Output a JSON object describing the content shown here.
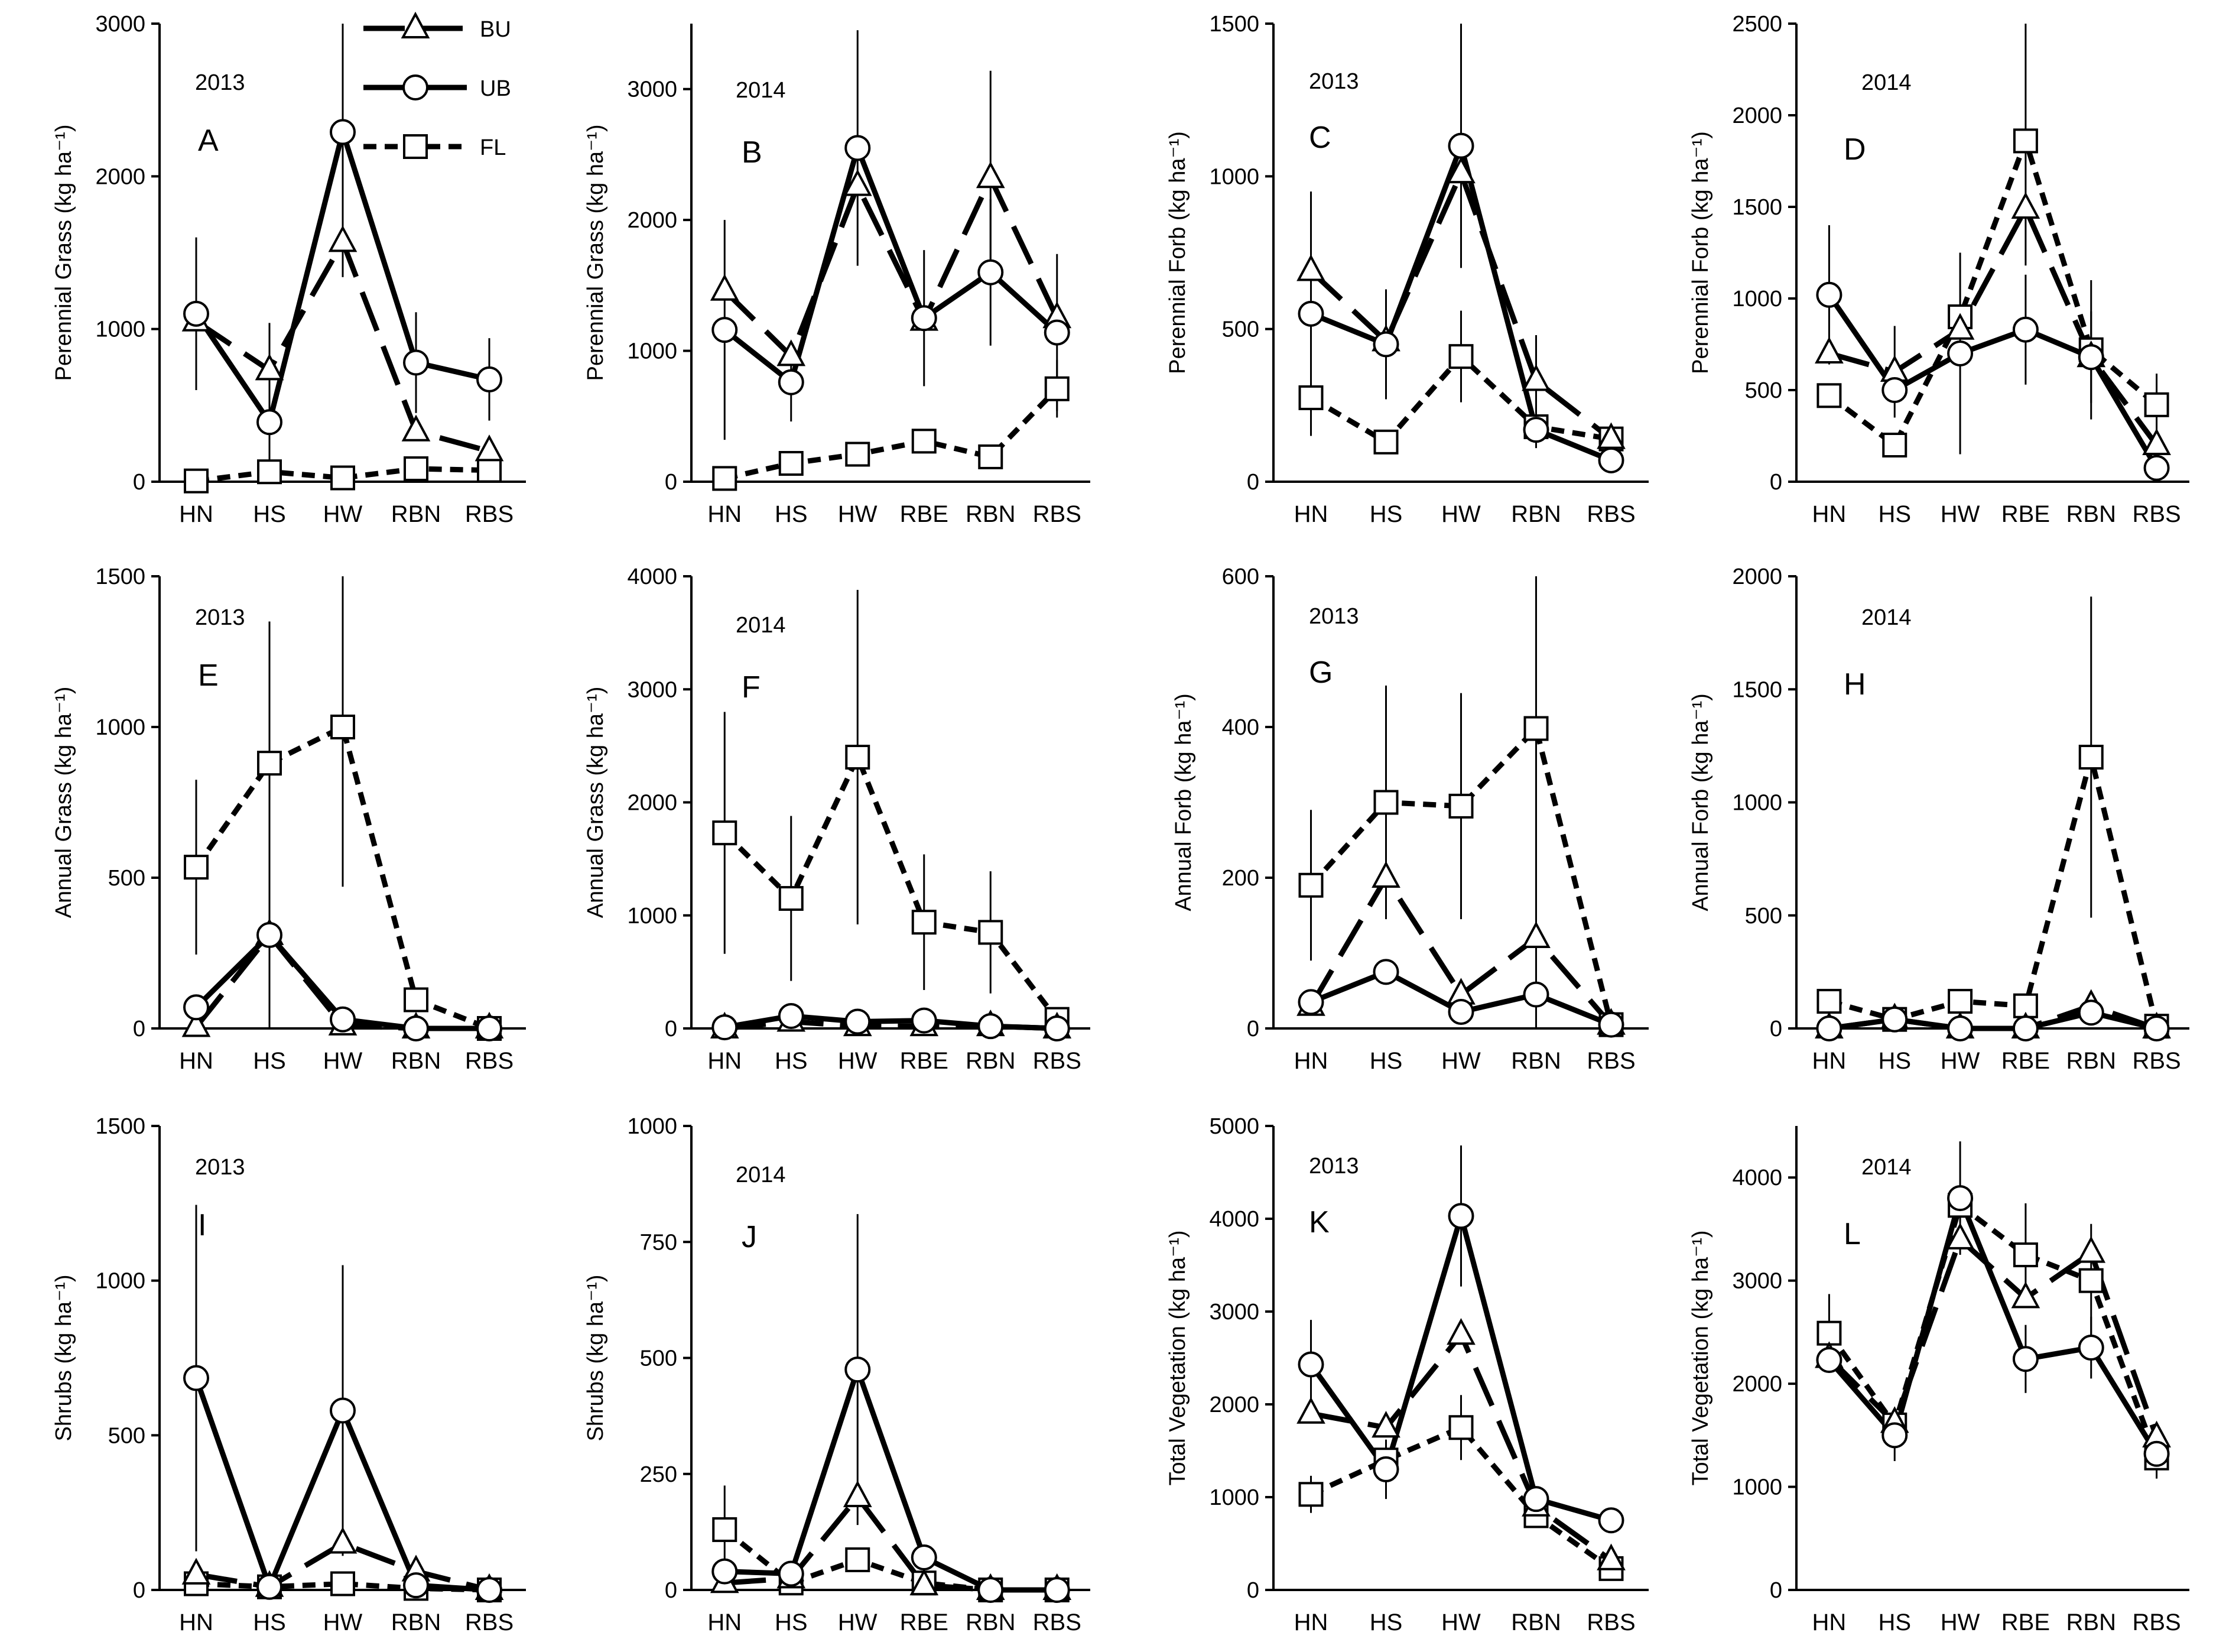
{
  "legend": [
    {
      "series": "BU",
      "label": "BU",
      "marker": "triangle",
      "line": "long-dash"
    },
    {
      "series": "UB",
      "label": "UB",
      "marker": "circle",
      "line": "solid"
    },
    {
      "series": "FL",
      "label": "FL",
      "marker": "square",
      "line": "short-dash"
    }
  ],
  "chart_data": [
    {
      "type": "line",
      "panel": "A",
      "year": "2013",
      "ylabel": "Perennial Grass (kg ha⁻¹)",
      "ylim": [
        0,
        3000
      ],
      "yticks": [
        0,
        1000,
        2000,
        3000
      ],
      "categories": [
        "HN",
        "HS",
        "HW",
        "RBN",
        "RBS"
      ],
      "series": [
        {
          "name": "BU",
          "values": [
            1050,
            730,
            1570,
            330,
            200
          ],
          "err": [
            null,
            null,
            null,
            null,
            null
          ]
        },
        {
          "name": "UB",
          "values": [
            1100,
            390,
            2290,
            780,
            670
          ],
          "err": [
            500,
            650,
            950,
            330,
            270
          ]
        },
        {
          "name": "FL",
          "values": [
            5,
            65,
            25,
            85,
            75
          ],
          "err": [
            null,
            null,
            null,
            null,
            null
          ]
        }
      ]
    },
    {
      "type": "line",
      "panel": "B",
      "year": "2014",
      "ylabel": "Perennial Grass (kg ha⁻¹)",
      "ylim": [
        0,
        3500
      ],
      "yticks": [
        0,
        1000,
        2000,
        3000
      ],
      "categories": [
        "HN",
        "HS",
        "HW",
        "RBE",
        "RBN",
        "RBS"
      ],
      "series": [
        {
          "name": "BU",
          "values": [
            1460,
            960,
            2260,
            1230,
            2320,
            1250
          ],
          "err": [
            null,
            null,
            null,
            null,
            820,
            null
          ]
        },
        {
          "name": "UB",
          "values": [
            1160,
            760,
            2550,
            1250,
            1600,
            1140
          ],
          "err": [
            840,
            300,
            900,
            520,
            560,
            600
          ]
        },
        {
          "name": "FL",
          "values": [
            25,
            140,
            210,
            310,
            190,
            710
          ],
          "err": [
            null,
            null,
            null,
            null,
            null,
            220
          ]
        }
      ]
    },
    {
      "type": "line",
      "panel": "C",
      "year": "2013",
      "ylabel": "Perennial Forb (kg ha⁻¹)",
      "ylim": [
        0,
        1500
      ],
      "yticks": [
        0,
        500,
        1000,
        1500
      ],
      "categories": [
        "HN",
        "HS",
        "HW",
        "RBN",
        "RBS"
      ],
      "series": [
        {
          "name": "BU",
          "values": [
            690,
            460,
            1010,
            330,
            140
          ],
          "err": [
            260,
            null,
            null,
            150,
            null
          ]
        },
        {
          "name": "UB",
          "values": [
            550,
            450,
            1100,
            170,
            70
          ],
          "err": [
            400,
            180,
            400,
            60,
            null
          ]
        },
        {
          "name": "FL",
          "values": [
            275,
            130,
            410,
            180,
            140
          ],
          "err": [
            null,
            null,
            150,
            null,
            null
          ]
        }
      ]
    },
    {
      "type": "line",
      "panel": "D",
      "year": "2014",
      "ylabel": "Perennial Forb (kg ha⁻¹)",
      "ylim": [
        0,
        2500
      ],
      "yticks": [
        0,
        500,
        1000,
        1500,
        2000,
        2500
      ],
      "categories": [
        "HN",
        "HS",
        "HW",
        "RBE",
        "RBN",
        "RBS"
      ],
      "series": [
        {
          "name": "BU",
          "values": [
            700,
            600,
            830,
            1490,
            680,
            200
          ],
          "err": [
            null,
            250,
            null,
            null,
            null,
            null
          ]
        },
        {
          "name": "UB",
          "values": [
            1020,
            500,
            700,
            830,
            680,
            75
          ],
          "err": [
            380,
            null,
            550,
            300,
            250,
            null
          ]
        },
        {
          "name": "FL",
          "values": [
            470,
            200,
            900,
            1860,
            720,
            420
          ],
          "err": [
            null,
            null,
            null,
            680,
            380,
            170
          ]
        }
      ]
    },
    {
      "type": "line",
      "panel": "E",
      "year": "2013",
      "ylabel": "Annual Grass (kg ha⁻¹)",
      "ylim": [
        0,
        1500
      ],
      "yticks": [
        0,
        500,
        1000,
        1500
      ],
      "categories": [
        "HN",
        "HS",
        "HW",
        "RBN",
        "RBS"
      ],
      "series": [
        {
          "name": "BU",
          "values": [
            5,
            310,
            10,
            0,
            0
          ],
          "err": [
            null,
            null,
            null,
            null,
            null
          ]
        },
        {
          "name": "UB",
          "values": [
            70,
            310,
            30,
            0,
            0
          ],
          "err": [
            null,
            1030,
            null,
            null,
            null
          ]
        },
        {
          "name": "FL",
          "values": [
            535,
            880,
            1000,
            95,
            0
          ],
          "err": [
            290,
            470,
            530,
            null,
            null
          ]
        }
      ]
    },
    {
      "type": "line",
      "panel": "F",
      "year": "2014",
      "ylabel": "Annual Grass (kg ha⁻¹)",
      "ylim": [
        0,
        4000
      ],
      "yticks": [
        0,
        1000,
        2000,
        3000,
        4000
      ],
      "categories": [
        "HN",
        "HS",
        "HW",
        "RBE",
        "RBN",
        "RBS"
      ],
      "series": [
        {
          "name": "BU",
          "values": [
            0,
            60,
            20,
            20,
            20,
            0
          ],
          "err": [
            null,
            null,
            null,
            null,
            null,
            null
          ]
        },
        {
          "name": "UB",
          "values": [
            10,
            110,
            60,
            70,
            20,
            0
          ],
          "err": [
            null,
            null,
            null,
            null,
            null,
            null
          ]
        },
        {
          "name": "FL",
          "values": [
            1730,
            1150,
            2400,
            940,
            850,
            80
          ],
          "err": [
            1070,
            730,
            1480,
            600,
            540,
            null
          ]
        }
      ]
    },
    {
      "type": "line",
      "panel": "G",
      "year": "2013",
      "ylabel": "Annual Forb (kg ha⁻¹)",
      "ylim": [
        0,
        600
      ],
      "yticks": [
        0,
        200,
        400,
        600
      ],
      "categories": [
        "HN",
        "HS",
        "HW",
        "RBN",
        "RBS"
      ],
      "series": [
        {
          "name": "BU",
          "values": [
            30,
            200,
            45,
            120,
            5
          ],
          "err": [
            null,
            null,
            null,
            null,
            null
          ]
        },
        {
          "name": "UB",
          "values": [
            35,
            75,
            22,
            45,
            5
          ],
          "err": [
            null,
            null,
            null,
            null,
            null
          ]
        },
        {
          "name": "FL",
          "values": [
            190,
            300,
            295,
            398,
            5
          ],
          "err": [
            100,
            155,
            150,
            400,
            null
          ]
        }
      ]
    },
    {
      "type": "line",
      "panel": "H",
      "year": "2014",
      "ylabel": "Annual Forb (kg ha⁻¹)",
      "ylim": [
        0,
        2000
      ],
      "yticks": [
        0,
        500,
        1000,
        1500,
        2000
      ],
      "categories": [
        "HN",
        "HS",
        "HW",
        "RBE",
        "RBN",
        "RBS"
      ],
      "series": [
        {
          "name": "BU",
          "values": [
            0,
            40,
            0,
            0,
            100,
            0
          ],
          "err": [
            null,
            null,
            null,
            null,
            null,
            null
          ]
        },
        {
          "name": "UB",
          "values": [
            0,
            40,
            0,
            0,
            70,
            0
          ],
          "err": [
            null,
            null,
            null,
            null,
            null,
            null
          ]
        },
        {
          "name": "FL",
          "values": [
            120,
            40,
            120,
            100,
            1200,
            10
          ],
          "err": [
            null,
            null,
            null,
            null,
            710,
            null
          ]
        }
      ]
    },
    {
      "type": "line",
      "panel": "I",
      "year": "2013",
      "ylabel": "Shrubs (kg ha⁻¹)",
      "ylim": [
        0,
        1500
      ],
      "yticks": [
        0,
        500,
        1000,
        1500
      ],
      "categories": [
        "HN",
        "HS",
        "HW",
        "RBN",
        "RBS"
      ],
      "series": [
        {
          "name": "BU",
          "values": [
            50,
            10,
            150,
            60,
            0
          ],
          "err": [
            null,
            null,
            null,
            null,
            null
          ]
        },
        {
          "name": "UB",
          "values": [
            685,
            10,
            580,
            15,
            0
          ],
          "err": [
            560,
            null,
            470,
            null,
            null
          ]
        },
        {
          "name": "FL",
          "values": [
            20,
            10,
            20,
            5,
            0
          ],
          "err": [
            null,
            null,
            null,
            null,
            null
          ]
        }
      ]
    },
    {
      "type": "line",
      "panel": "J",
      "year": "2014",
      "ylabel": "Shrubs (kg ha⁻¹)",
      "ylim": [
        0,
        1000
      ],
      "yticks": [
        0,
        250,
        500,
        750,
        1000
      ],
      "categories": [
        "HN",
        "HS",
        "HW",
        "RBE",
        "RBN",
        "RBS"
      ],
      "series": [
        {
          "name": "BU",
          "values": [
            15,
            25,
            200,
            10,
            0,
            0
          ],
          "err": [
            null,
            null,
            null,
            null,
            null,
            null
          ]
        },
        {
          "name": "UB",
          "values": [
            40,
            35,
            475,
            70,
            0,
            0
          ],
          "err": [
            null,
            null,
            335,
            null,
            null,
            null
          ]
        },
        {
          "name": "FL",
          "values": [
            130,
            15,
            65,
            15,
            0,
            0
          ],
          "err": [
            95,
            null,
            null,
            null,
            null,
            null
          ]
        }
      ]
    },
    {
      "type": "line",
      "panel": "K",
      "year": "2013",
      "ylabel": "Total Vegetation (kg ha⁻¹)",
      "ylim": [
        0,
        5000
      ],
      "yticks": [
        0,
        1000,
        2000,
        3000,
        4000,
        5000
      ],
      "categories": [
        "HN",
        "HS",
        "HW",
        "RBN",
        "RBS"
      ],
      "series": [
        {
          "name": "BU",
          "values": [
            1900,
            1750,
            2750,
            900,
            320
          ],
          "err": [
            null,
            null,
            null,
            null,
            null
          ]
        },
        {
          "name": "UB",
          "values": [
            2430,
            1300,
            4030,
            980,
            750
          ],
          "err": [
            480,
            320,
            760,
            null,
            null
          ]
        },
        {
          "name": "FL",
          "values": [
            1030,
            1400,
            1750,
            800,
            230
          ],
          "err": [
            200,
            null,
            350,
            null,
            null
          ]
        }
      ]
    },
    {
      "type": "line",
      "panel": "L",
      "year": "2014",
      "ylabel": "Total Vegetation (kg ha⁻¹)",
      "ylim": [
        0,
        4500
      ],
      "yticks": [
        0,
        1000,
        2000,
        3000,
        4000
      ],
      "categories": [
        "HN",
        "HS",
        "HW",
        "RBE",
        "RBN",
        "RBS"
      ],
      "series": [
        {
          "name": "BU",
          "values": [
            2250,
            1620,
            3400,
            2830,
            3270,
            1480
          ],
          "err": [
            null,
            null,
            null,
            null,
            null,
            null
          ]
        },
        {
          "name": "UB",
          "values": [
            2230,
            1500,
            3800,
            2240,
            2350,
            1320
          ],
          "err": [
            null,
            250,
            550,
            330,
            300,
            null
          ]
        },
        {
          "name": "FL",
          "values": [
            2490,
            1600,
            3730,
            3250,
            3000,
            1280
          ],
          "err": [
            380,
            null,
            null,
            500,
            550,
            200
          ]
        }
      ]
    }
  ]
}
